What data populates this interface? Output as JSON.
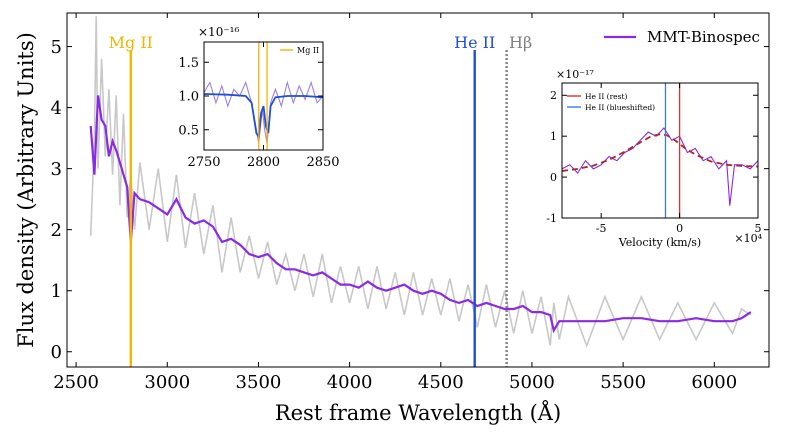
{
  "chart_data": [
    {
      "type": "line",
      "xlabel": "Rest frame Wavelength (Å)",
      "ylabel": "Flux density (Arbitrary Units)",
      "xlim": [
        2450,
        6300
      ],
      "ylim": [
        -0.25,
        5.55
      ],
      "xticks": [
        2500,
        3000,
        3500,
        4000,
        4500,
        5000,
        5500,
        6000
      ],
      "yticks": [
        0,
        1,
        2,
        3,
        4,
        5
      ],
      "legend": {
        "placement": "top-right"
      },
      "series": [
        {
          "name": "MMT-Binospec",
          "color": "#8a2be2",
          "x": [
            2580,
            2600,
            2620,
            2640,
            2660,
            2680,
            2700,
            2720,
            2740,
            2760,
            2780,
            2800,
            2820,
            2850,
            2900,
            2950,
            3000,
            3050,
            3100,
            3150,
            3200,
            3250,
            3300,
            3350,
            3400,
            3450,
            3500,
            3550,
            3600,
            3650,
            3700,
            3750,
            3800,
            3850,
            3900,
            3950,
            4000,
            4050,
            4100,
            4150,
            4200,
            4250,
            4300,
            4350,
            4400,
            4450,
            4500,
            4550,
            4600,
            4650,
            4700,
            4750,
            4800,
            4850,
            4900,
            4950,
            5000,
            5050,
            5100,
            5120,
            5150,
            5200,
            5300,
            5400,
            5500,
            5600,
            5700,
            5800,
            5900,
            6000,
            6100,
            6150,
            6200
          ],
          "y": [
            3.7,
            2.9,
            4.2,
            3.8,
            3.7,
            3.2,
            3.45,
            3.3,
            3.1,
            2.9,
            2.7,
            1.8,
            2.6,
            2.5,
            2.45,
            2.35,
            2.25,
            2.5,
            2.2,
            2.1,
            2.15,
            2.05,
            1.8,
            1.85,
            1.75,
            1.6,
            1.55,
            1.6,
            1.45,
            1.35,
            1.35,
            1.3,
            1.25,
            1.3,
            1.2,
            1.1,
            1.1,
            1.05,
            1.15,
            1.05,
            1.0,
            1.05,
            1.1,
            1.0,
            0.95,
            1.0,
            0.95,
            0.85,
            0.8,
            0.85,
            0.75,
            0.8,
            0.75,
            0.7,
            0.7,
            0.75,
            0.65,
            0.65,
            0.6,
            0.35,
            0.5,
            0.5,
            0.5,
            0.5,
            0.55,
            0.55,
            0.5,
            0.5,
            0.55,
            0.5,
            0.5,
            0.55,
            0.65
          ]
        },
        {
          "name": "",
          "color": "#c8c8c8",
          "x": [
            2580,
            2600,
            2610,
            2620,
            2640,
            2660,
            2680,
            2700,
            2720,
            2740,
            2760,
            2780,
            2800,
            2820,
            2850,
            2900,
            2950,
            3000,
            3050,
            3100,
            3150,
            3200,
            3250,
            3300,
            3350,
            3400,
            3450,
            3500,
            3550,
            3600,
            3650,
            3700,
            3750,
            3800,
            3850,
            3900,
            3950,
            4000,
            4050,
            4100,
            4150,
            4200,
            4250,
            4300,
            4350,
            4400,
            4450,
            4500,
            4550,
            4600,
            4650,
            4700,
            4750,
            4800,
            4850,
            4900,
            4950,
            5000,
            5050,
            5100,
            5120,
            5150,
            5200,
            5300,
            5400,
            5500,
            5600,
            5700,
            5800,
            5900,
            6000,
            6100,
            6150,
            6200
          ],
          "y": [
            1.9,
            3.5,
            5.5,
            3.0,
            4.8,
            3.2,
            4.3,
            2.9,
            4.2,
            2.4,
            3.9,
            2.2,
            2.9,
            2.0,
            3.1,
            2.0,
            3.0,
            1.8,
            2.9,
            1.7,
            2.6,
            1.6,
            2.4,
            1.3,
            2.2,
            1.3,
            1.9,
            1.2,
            1.8,
            1.1,
            1.6,
            1.0,
            1.6,
            0.9,
            1.6,
            0.8,
            1.4,
            0.8,
            1.4,
            0.7,
            1.4,
            0.7,
            1.3,
            0.6,
            1.3,
            0.6,
            1.2,
            0.6,
            1.2,
            0.5,
            1.1,
            0.4,
            1.1,
            0.4,
            1.0,
            0.3,
            1.0,
            0.3,
            0.9,
            0.1,
            0.8,
            0.2,
            0.9,
            0.1,
            0.9,
            0.2,
            0.9,
            0.2,
            0.8,
            0.2,
            0.8,
            0.3,
            0.7,
            0.6
          ]
        }
      ],
      "lines": [
        {
          "label": "Mg II",
          "x": 2800,
          "color": "#f5b400",
          "style": "solid"
        },
        {
          "label": "He II",
          "x": 4686,
          "color": "#1f4fd6",
          "style": "solid"
        },
        {
          "label": "Hβ",
          "x": 4861,
          "color": "#808080",
          "style": "dotted"
        }
      ]
    },
    {
      "type": "line",
      "position": "inset-top-left",
      "xlim": [
        2750,
        2850
      ],
      "ylim": [
        0.2,
        1.8
      ],
      "xticks": [
        2750,
        2800,
        2850
      ],
      "yticks": [
        0.5,
        1.0,
        1.5
      ],
      "yscale_label": "×10⁻¹⁶",
      "legend": {
        "placement": "top-right",
        "entries": [
          "Mg II"
        ]
      },
      "series": [
        {
          "name": "",
          "color": "#a080e0",
          "x": [
            2750,
            2755,
            2760,
            2765,
            2770,
            2775,
            2780,
            2785,
            2790,
            2793,
            2796,
            2799,
            2801,
            2803,
            2806,
            2810,
            2815,
            2820,
            2825,
            2830,
            2835,
            2840,
            2845,
            2850
          ],
          "y": [
            1.05,
            1.2,
            0.9,
            1.15,
            0.85,
            1.1,
            1.0,
            1.2,
            0.9,
            0.6,
            0.3,
            0.8,
            0.5,
            0.3,
            0.9,
            1.1,
            0.85,
            1.2,
            0.9,
            1.15,
            0.95,
            1.2,
            0.9,
            1.0
          ]
        },
        {
          "name": "",
          "color": "#1f4fd6",
          "x": [
            2750,
            2770,
            2785,
            2790,
            2794,
            2796,
            2798,
            2800,
            2802,
            2804,
            2806,
            2810,
            2820,
            2835,
            2850
          ],
          "y": [
            1.03,
            1.02,
            1.0,
            0.9,
            0.45,
            0.4,
            0.75,
            0.85,
            0.55,
            0.45,
            0.85,
            0.98,
            1.0,
            1.0,
            0.98
          ]
        }
      ],
      "lines": [
        {
          "label": "Mg II",
          "x": 2796,
          "color": "#f5b400"
        },
        {
          "label": "",
          "x": 2803,
          "color": "#f5b400"
        }
      ]
    },
    {
      "type": "line",
      "position": "inset-right",
      "xlabel": "Velocity (km/s)",
      "xscale_label": "×10⁴",
      "yscale_label": "×10⁻¹⁷",
      "xlim": [
        -7.5,
        5
      ],
      "ylim": [
        -1,
        2.3
      ],
      "xticks": [
        -5,
        0,
        5
      ],
      "yticks": [
        -1,
        0,
        1,
        2
      ],
      "legend": {
        "placement": "top-left",
        "entries": [
          "He II (rest)",
          "He II (blueshifted)"
        ]
      },
      "series": [
        {
          "name": "",
          "color": "#8a2be2",
          "x": [
            -7.5,
            -7,
            -6.5,
            -6,
            -5.5,
            -5,
            -4.5,
            -4,
            -3.5,
            -3,
            -2.5,
            -2,
            -1.5,
            -1,
            -0.5,
            0,
            0.5,
            1,
            1.5,
            2,
            2.5,
            3,
            3.2,
            3.5,
            4,
            4.5,
            5
          ],
          "y": [
            0.2,
            0.3,
            0.1,
            0.4,
            0.2,
            0.3,
            0.5,
            0.4,
            0.6,
            0.7,
            0.9,
            1.1,
            1.0,
            1.2,
            0.9,
            1.0,
            0.6,
            0.7,
            0.4,
            0.5,
            0.2,
            0.4,
            -0.7,
            0.3,
            0.3,
            0.2,
            0.4
          ]
        },
        {
          "name": "",
          "color": "#a52a2a",
          "x": [
            -7.5,
            -6.5,
            -5.5,
            -4.5,
            -3.5,
            -2.5,
            -1.8,
            -1.2,
            -0.8,
            -0.3,
            0.3,
            1,
            2,
            3,
            4,
            5
          ],
          "y": [
            0.15,
            0.2,
            0.28,
            0.42,
            0.62,
            0.85,
            1.0,
            1.05,
            1.02,
            0.9,
            0.72,
            0.55,
            0.38,
            0.3,
            0.27,
            0.26
          ]
        }
      ],
      "lines": [
        {
          "label": "He II (rest)",
          "x": 0,
          "color": "#e03030"
        },
        {
          "label": "He II (blueshifted)",
          "x": -0.9,
          "color": "#3b7be0"
        }
      ]
    }
  ]
}
